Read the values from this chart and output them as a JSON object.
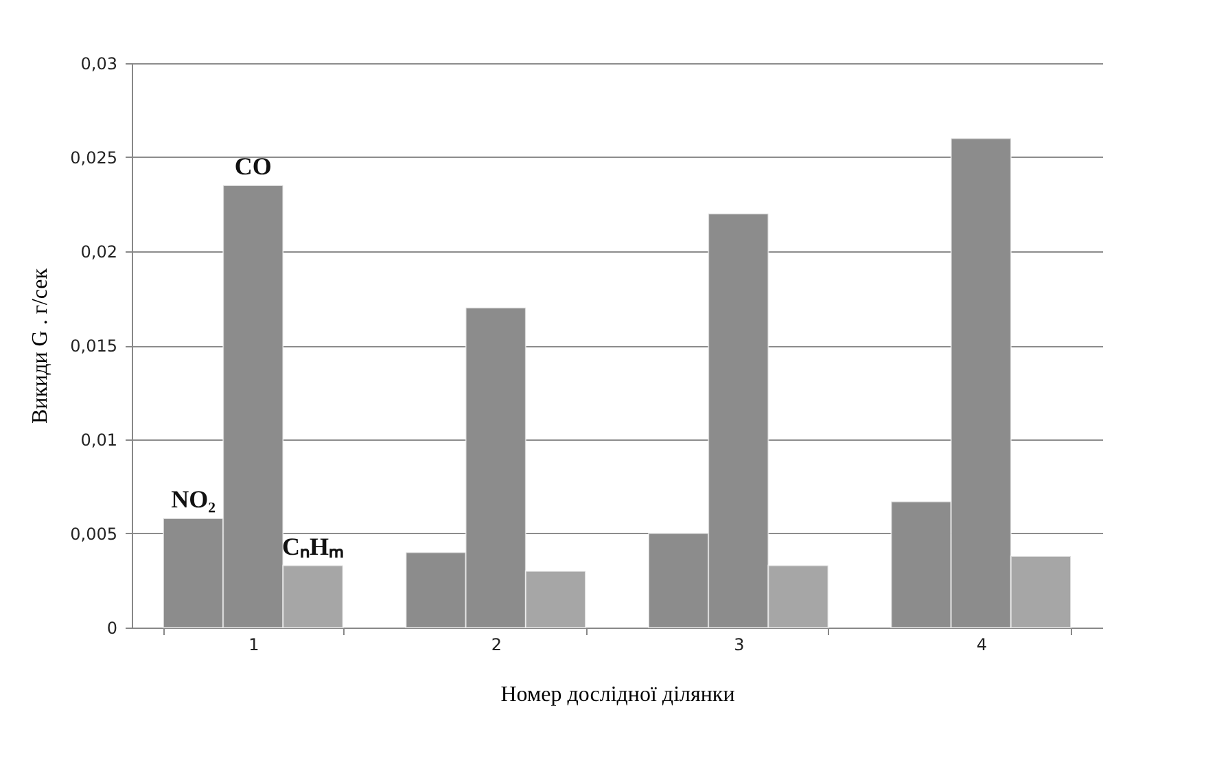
{
  "chart_data": {
    "type": "bar",
    "xlabel": "Номер дослідної ділянки",
    "ylabel": "Викиди G . г/сек",
    "categories": [
      "1",
      "2",
      "3",
      "4"
    ],
    "series": [
      {
        "name": "NO₂",
        "color": "#8c8c8c",
        "values": [
          0.0058,
          0.004,
          0.005,
          0.0067
        ]
      },
      {
        "name": "CO",
        "color": "#8c8c8c",
        "values": [
          0.0235,
          0.017,
          0.022,
          0.026
        ]
      },
      {
        "name": "CₙHₘ",
        "color": "#a6a6a6",
        "values": [
          0.0033,
          0.003,
          0.0033,
          0.0038
        ]
      }
    ],
    "ylim": [
      0,
      0.03
    ],
    "yticks": [
      0,
      {
        "value": 0.005,
        "label": "0,005"
      },
      {
        "value": 0.01,
        "label": "0,01"
      },
      {
        "value": 0.015,
        "label": "0,015"
      },
      {
        "value": 0.02,
        "label": "0,02"
      },
      {
        "value": 0.025,
        "label": "0,025"
      },
      {
        "value": 0.03,
        "label": "0,03"
      }
    ],
    "grid": "y",
    "legend": false
  }
}
